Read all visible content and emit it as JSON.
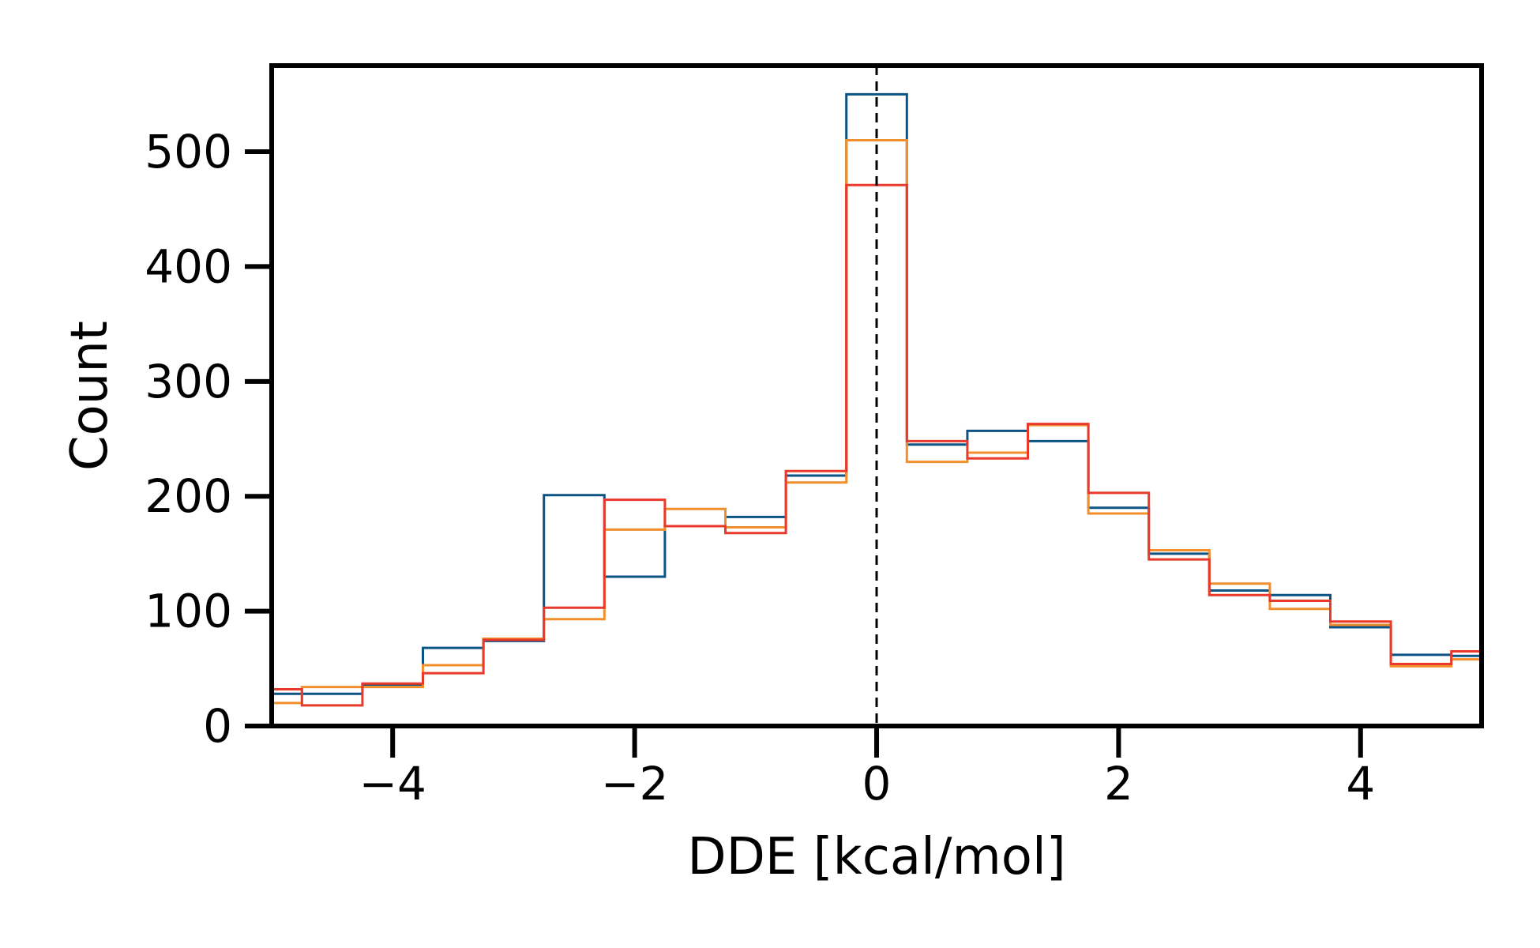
{
  "chart_data": {
    "type": "step-histogram",
    "xlabel": "DDE [kcal/mol]",
    "ylabel": "Count",
    "xlim": [
      -5,
      5
    ],
    "ylim": [
      0,
      575
    ],
    "xticks": [
      -4,
      -2,
      0,
      2,
      4
    ],
    "xtick_labels": [
      "−4",
      "−2",
      "0",
      "2",
      "4"
    ],
    "yticks": [
      0,
      100,
      200,
      300,
      400,
      500
    ],
    "ytick_labels": [
      "0",
      "100",
      "200",
      "300",
      "400",
      "500"
    ],
    "grid": false,
    "reference_line": {
      "x": 0,
      "style": "dashed",
      "color": "#000000"
    },
    "bin_edges": [
      -5.25,
      -4.75,
      -4.25,
      -3.75,
      -3.25,
      -2.75,
      -2.25,
      -1.75,
      -1.25,
      -0.75,
      -0.25,
      0.25,
      0.75,
      1.25,
      1.75,
      2.25,
      2.75,
      3.25,
      3.75,
      4.25,
      4.75,
      5.25
    ],
    "series": [
      {
        "color": "#0b5384",
        "values": [
          28,
          28,
          36,
          68,
          74,
          201,
          130,
          174,
          182,
          218,
          550,
          245,
          257,
          248,
          190,
          150,
          118,
          114,
          86,
          62,
          61
        ]
      },
      {
        "color": "#f28e2b",
        "values": [
          20,
          34,
          34,
          53,
          76,
          93,
          171,
          189,
          173,
          212,
          510,
          230,
          238,
          262,
          185,
          153,
          124,
          102,
          88,
          52,
          58
        ]
      },
      {
        "color": "#e8392a",
        "values": [
          32,
          18,
          37,
          46,
          75,
          103,
          197,
          174,
          168,
          222,
          471,
          248,
          233,
          263,
          203,
          145,
          114,
          109,
          91,
          54,
          65
        ]
      }
    ]
  }
}
